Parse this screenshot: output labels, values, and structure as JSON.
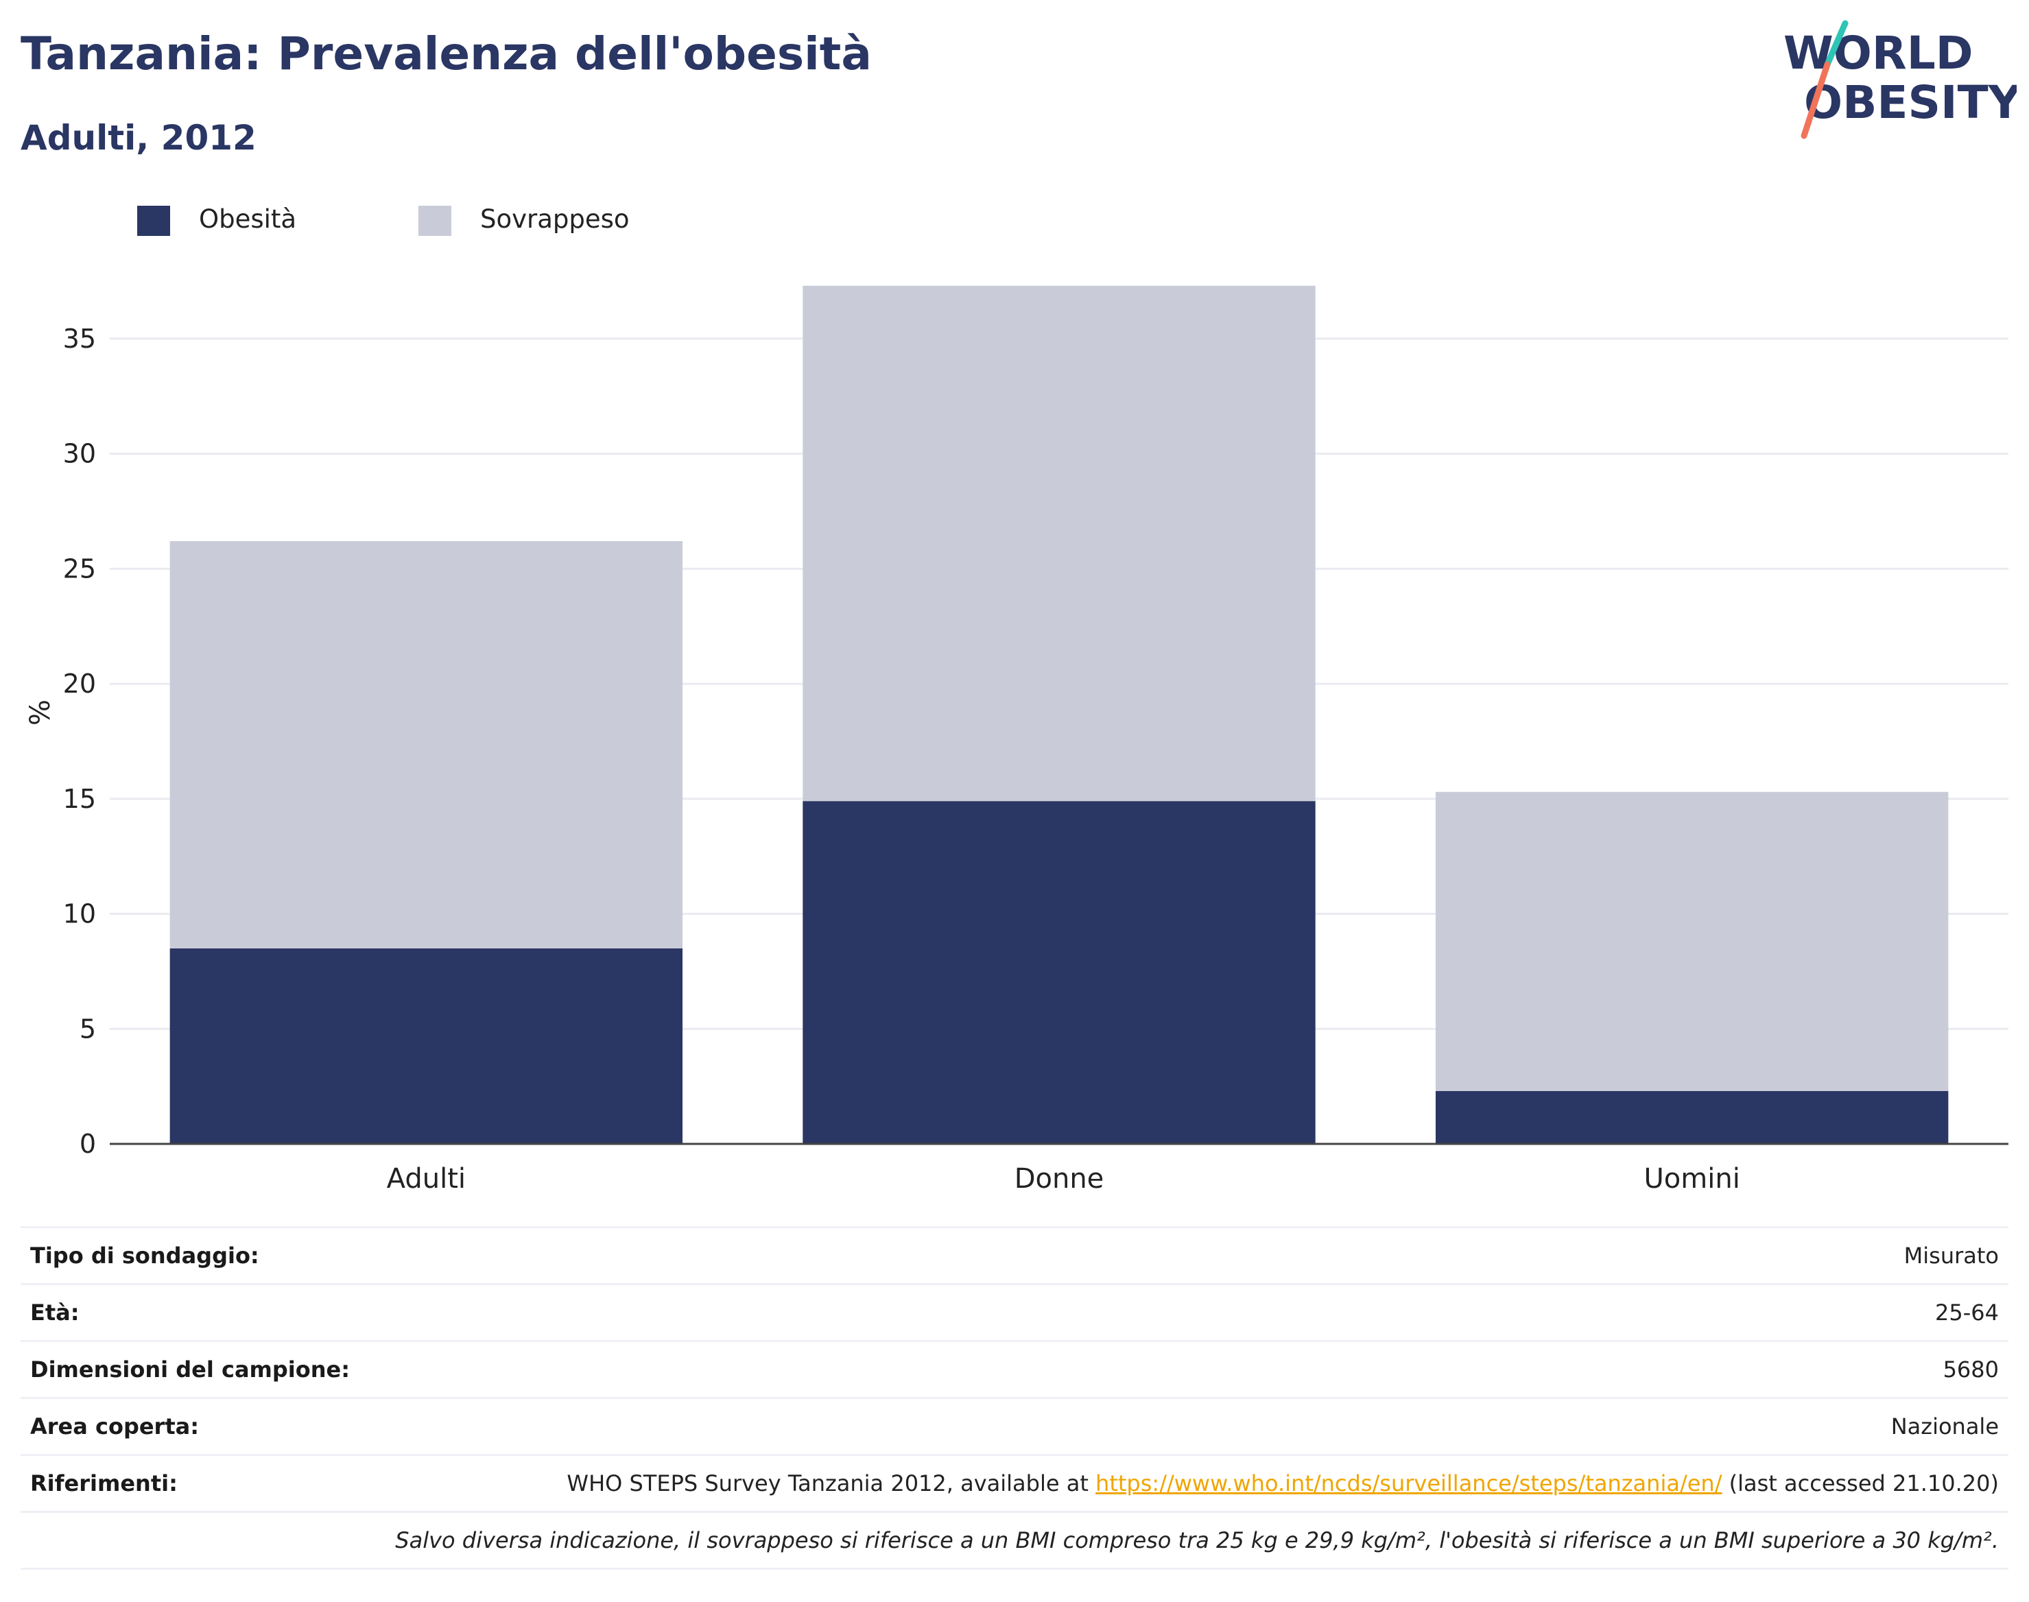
{
  "header": {
    "title": "Tanzania: Prevalenza dell'obesità",
    "subtitle": "Adulti, 2012"
  },
  "logo": {
    "line1": "WORLD",
    "line2": "OBESITY",
    "colors": {
      "text": "#2a3663",
      "slash_top": "#2ec4b6",
      "slash_bottom": "#f0735a"
    }
  },
  "legend": {
    "items": [
      {
        "label": "Obesità",
        "color": "#2a3663"
      },
      {
        "label": "Sovrappeso",
        "color": "#c9ccd8"
      }
    ]
  },
  "chart_data": {
    "type": "bar",
    "stacked": true,
    "categories": [
      "Adulti",
      "Donne",
      "Uomini"
    ],
    "series": [
      {
        "name": "Obesità",
        "values": [
          8.5,
          14.9,
          2.3
        ],
        "color": "#2a3663"
      },
      {
        "name": "Sovrappeso",
        "values": [
          17.7,
          22.4,
          13.0
        ],
        "color": "#c9ccd8"
      }
    ],
    "ylabel": "%",
    "xlabel": "",
    "ylim": [
      0,
      37.5
    ],
    "yticks": [
      0,
      5,
      10,
      15,
      20,
      25,
      30,
      35
    ],
    "grid": true,
    "legend_position": "top-left"
  },
  "info": {
    "rows": [
      {
        "label": "Tipo di sondaggio:",
        "value": "Misurato"
      },
      {
        "label": "Età:",
        "value": "25-64"
      },
      {
        "label": "Dimensioni del campione:",
        "value": "5680"
      },
      {
        "label": "Area coperta:",
        "value": "Nazionale"
      }
    ],
    "references": {
      "label": "Riferimenti:",
      "text_before": "WHO STEPS Survey Tanzania 2012, available at ",
      "link": "https://www.who.int/ncds/surveillance/steps/tanzania/en/",
      "text_after": " (last accessed 21.10.20)"
    },
    "note": "Salvo diversa indicazione, il sovrappeso si riferisce a un BMI compreso tra 25 kg e 29,9 kg/m², l'obesità si riferisce a un BMI superiore a 30 kg/m²."
  }
}
